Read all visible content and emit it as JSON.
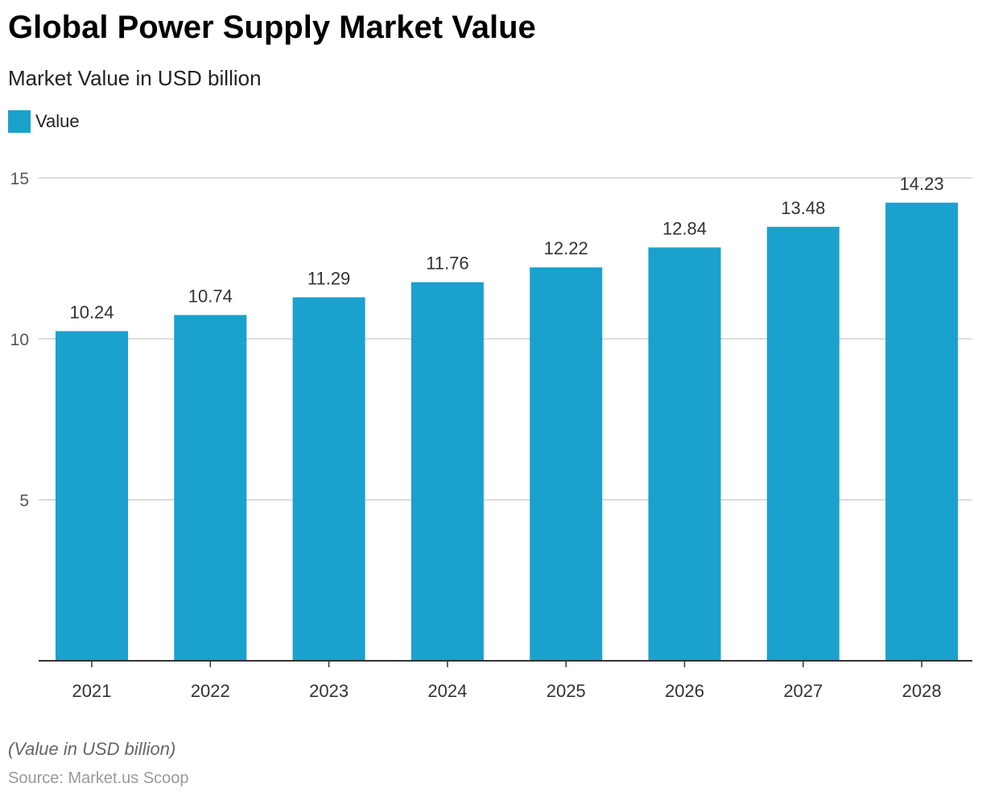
{
  "chart_data": {
    "type": "bar",
    "title": "Global Power Supply Market Value",
    "subtitle": "Market Value in USD billion",
    "categories": [
      "2021",
      "2022",
      "2023",
      "2024",
      "2025",
      "2026",
      "2027",
      "2028"
    ],
    "series": [
      {
        "name": "Value",
        "values": [
          10.24,
          10.74,
          11.29,
          11.76,
          12.22,
          12.84,
          13.48,
          14.23
        ],
        "color": "#1aa1cd"
      }
    ],
    "ylim": [
      0,
      15
    ],
    "yticks": [
      5,
      10,
      15
    ],
    "grid": true,
    "legend_position": "top-left",
    "note": "(Value in USD billion)",
    "source": "Source: Market.us Scoop"
  }
}
